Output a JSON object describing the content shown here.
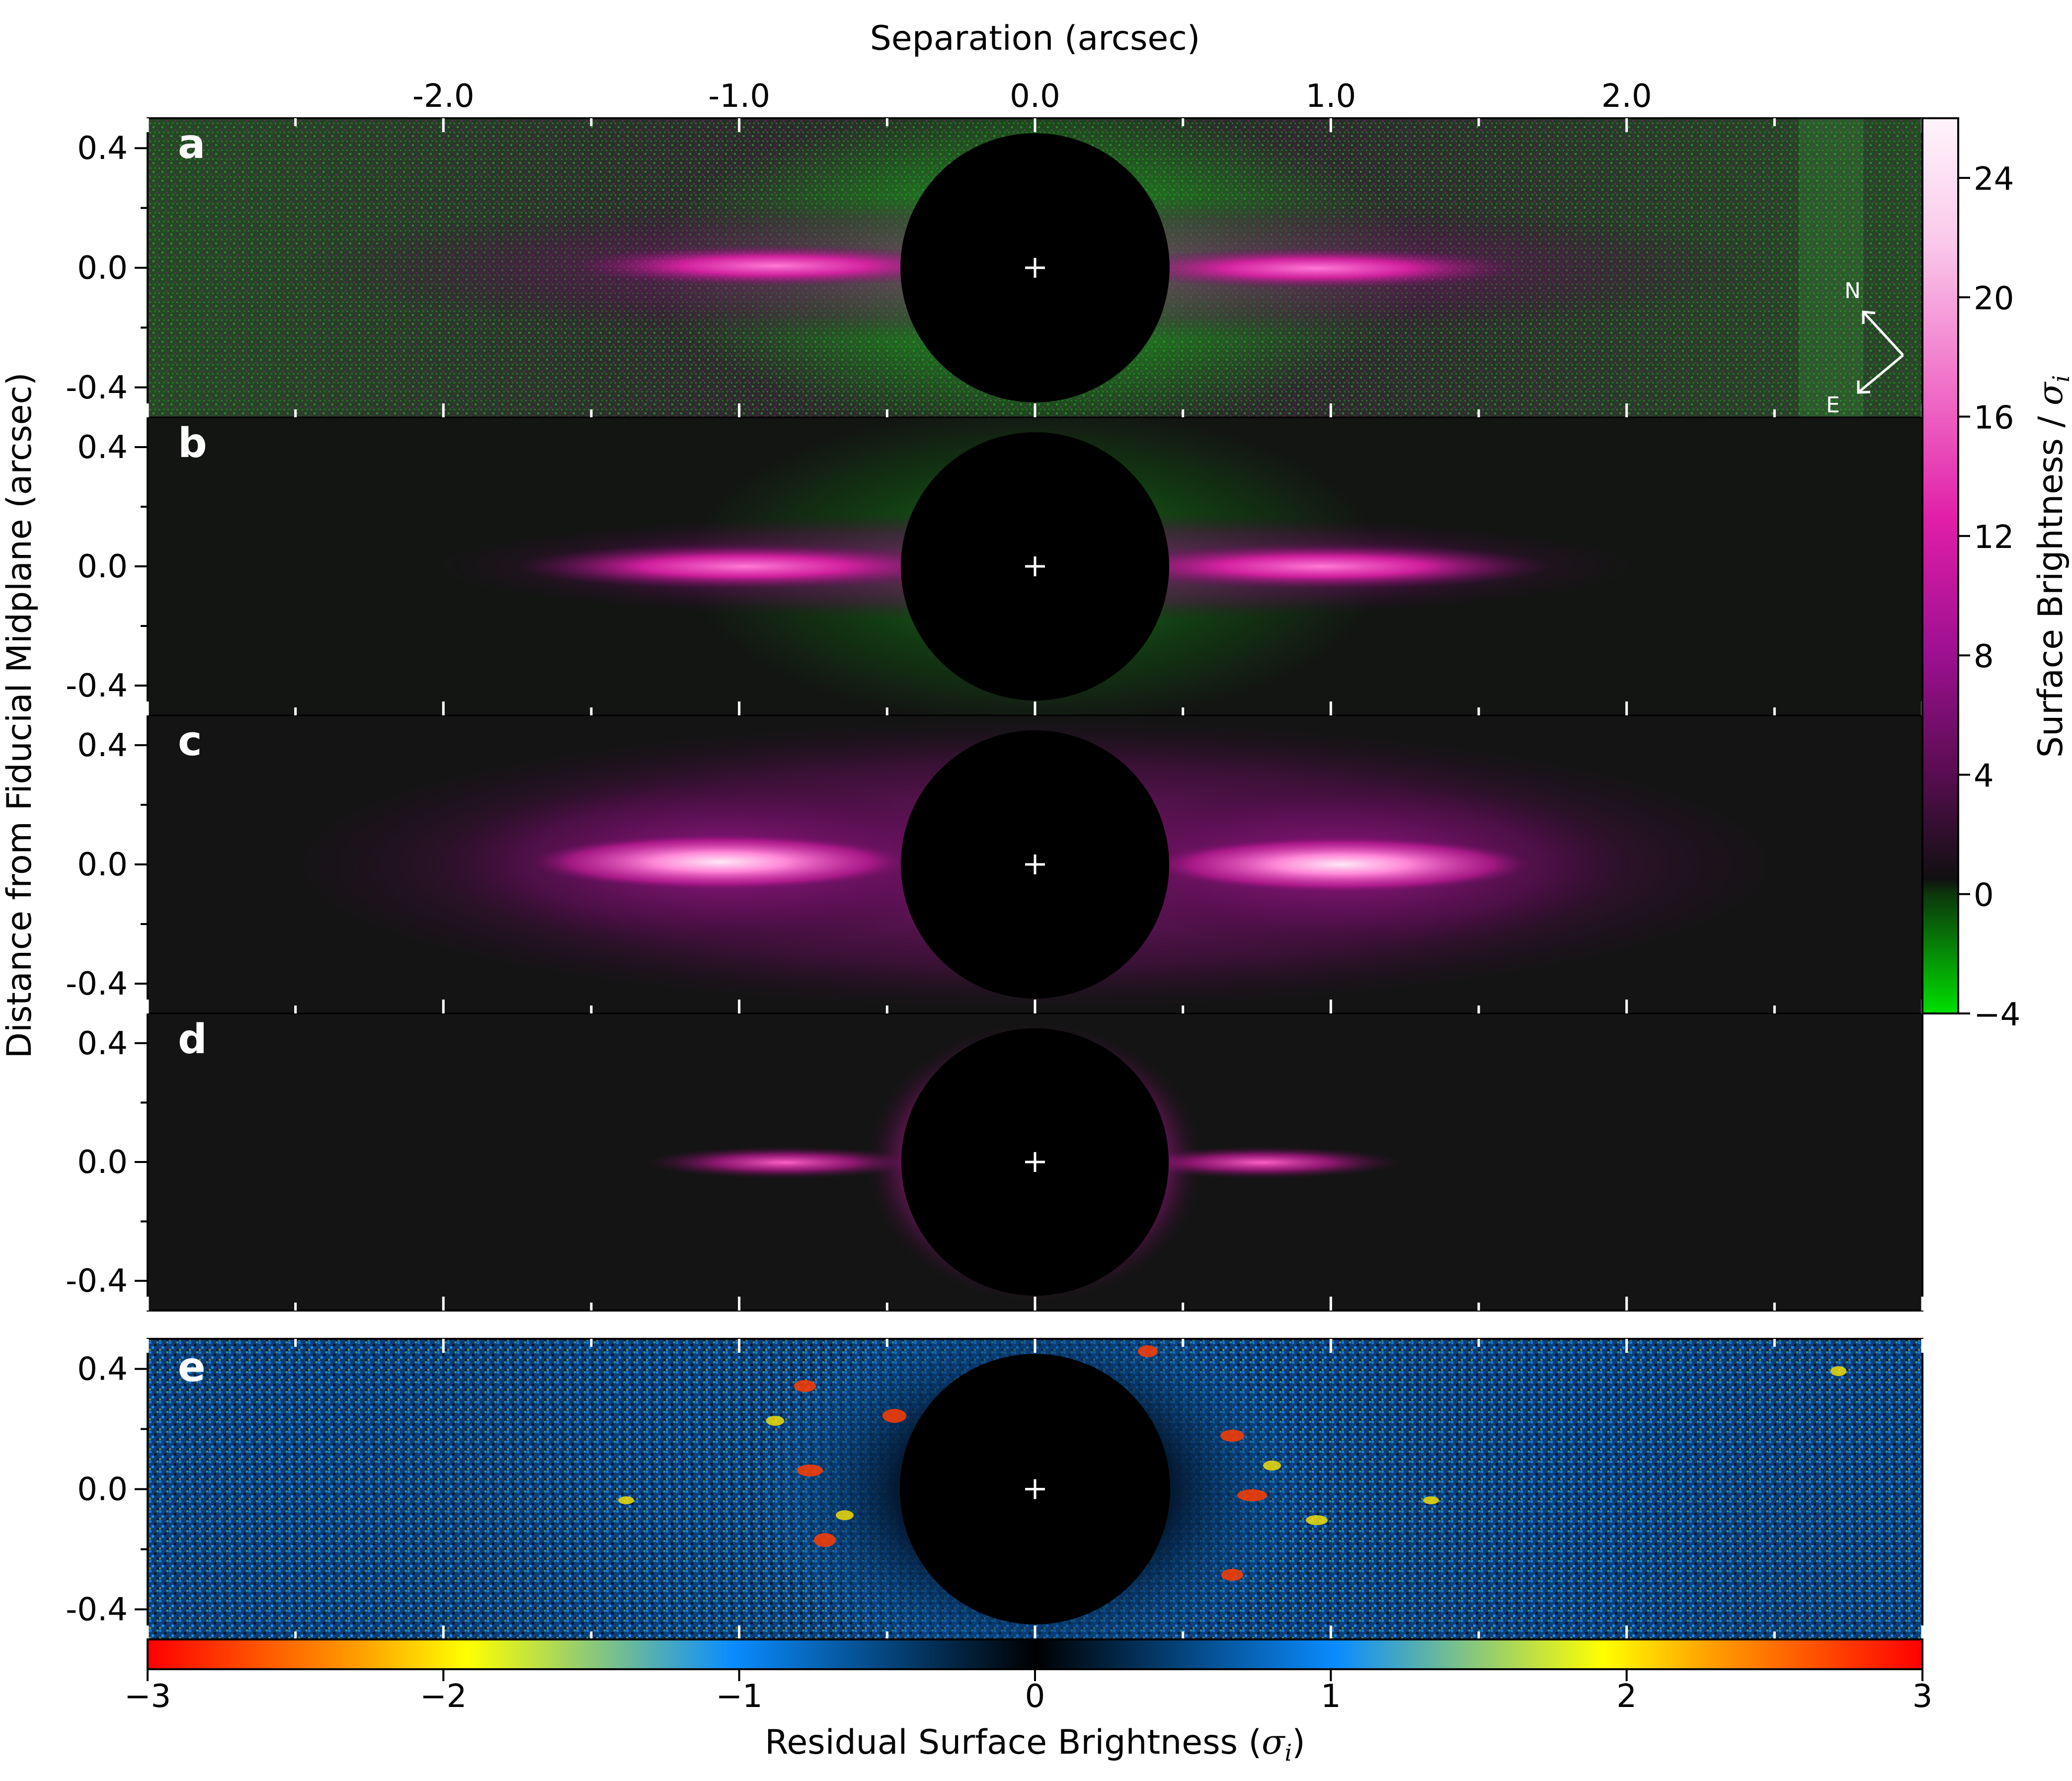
{
  "chart_data": [
    {
      "type": "heatmap",
      "description_panels": "four stacked image panels of an edge-on debris disk sharing one x axis",
      "top_axis_label": "Separation (arcsec)",
      "y_axis_label": "Distance from Fiducial Midplane (arcsec)",
      "x_ticks": [
        -2.0,
        -1.0,
        0.0,
        1.0,
        2.0
      ],
      "x_tick_labels": [
        "-2.0",
        "-1.0",
        "0.0",
        "1.0",
        "2.0"
      ],
      "x_range": [
        -3.0,
        3.0
      ],
      "y_ticks": [
        0.4,
        0.0,
        -0.4
      ],
      "y_tick_labels": [
        "0.4",
        "0.0",
        "-0.4"
      ],
      "y_range": [
        -0.5,
        0.5
      ],
      "panels": [
        {
          "letter": "a",
          "kind": "data"
        },
        {
          "letter": "b",
          "kind": "model"
        },
        {
          "letter": "c",
          "kind": "model"
        },
        {
          "letter": "d",
          "kind": "model"
        }
      ],
      "compass": {
        "north_label": "N",
        "east_label": "E"
      },
      "occulter_radius_arcsec": 0.45,
      "colorbar": {
        "label_text": "Surface Brightness / ",
        "label_symbol": "σ",
        "label_sub": "i",
        "ticks": [
          -4,
          0,
          4,
          8,
          12,
          16,
          20,
          24
        ],
        "tick_labels": [
          "−4",
          "0",
          "4",
          "8",
          "12",
          "16",
          "20",
          "24"
        ],
        "range": [
          -4,
          26
        ],
        "colors": [
          "#00e000",
          "#0c380c",
          "#101010",
          "#5a0d52",
          "#9c1090",
          "#e01ea8",
          "#f070c8",
          "#fac8ea",
          "#fff4fb"
        ]
      }
    },
    {
      "type": "heatmap",
      "panel_letter": "e",
      "y_ticks": [
        0.4,
        0.0,
        -0.4
      ],
      "y_tick_labels": [
        "0.4",
        "0.0",
        "-0.4"
      ],
      "colorbar": {
        "label_text": "Residual Surface Brightness (",
        "label_symbol": "σ",
        "label_sub": "i",
        "label_close": ")",
        "ticks": [
          -3,
          -2,
          -1,
          0,
          1,
          2,
          3
        ],
        "tick_labels": [
          "−3",
          "−2",
          "−1",
          "0",
          "1",
          "2",
          "3"
        ],
        "range": [
          -3,
          3
        ],
        "colors": [
          "#ff0000",
          "#ffa000",
          "#ffff00",
          "#0a8cff",
          "#000000",
          "#0a8cff",
          "#ffff00",
          "#ffa000",
          "#ff0000"
        ]
      }
    }
  ]
}
